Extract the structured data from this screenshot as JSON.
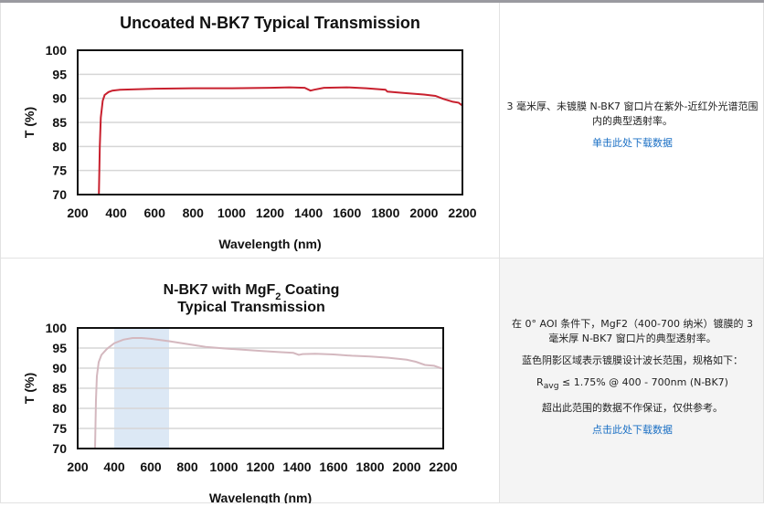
{
  "chart_data": [
    {
      "type": "line",
      "title": "Uncoated N-BK7 Typical Transmission",
      "xlabel": "Wavelength (nm)",
      "ylabel": "T (%)",
      "xlim": [
        200,
        2200
      ],
      "ylim": [
        70,
        100
      ],
      "xticks": [
        200,
        400,
        600,
        800,
        1000,
        1200,
        1400,
        1600,
        1800,
        2000,
        2200
      ],
      "yticks": [
        70,
        75,
        80,
        85,
        90,
        95,
        100
      ],
      "grid": true,
      "color": "#c8202e",
      "x": [
        310,
        315,
        320,
        330,
        340,
        360,
        380,
        420,
        600,
        800,
        1000,
        1200,
        1300,
        1380,
        1410,
        1430,
        1480,
        1600,
        1700,
        1800,
        1810,
        1900,
        2000,
        2060,
        2100,
        2150,
        2180,
        2200
      ],
      "y": [
        70,
        80,
        86,
        89.5,
        90.7,
        91.3,
        91.6,
        91.8,
        92.0,
        92.1,
        92.1,
        92.2,
        92.3,
        92.2,
        91.6,
        91.8,
        92.2,
        92.3,
        92.1,
        91.8,
        91.4,
        91.1,
        90.8,
        90.5,
        89.9,
        89.3,
        89.1,
        88.5
      ]
    },
    {
      "type": "line",
      "title_parts": [
        "N-BK7 with MgF",
        "2",
        " Coating"
      ],
      "title_line2": "Typical Transmission",
      "xlabel": "Wavelength (nm)",
      "ylabel": "T (%)",
      "xlim": [
        200,
        2200
      ],
      "ylim": [
        70,
        100
      ],
      "xticks": [
        200,
        400,
        600,
        800,
        1000,
        1200,
        1400,
        1600,
        1800,
        2000,
        2200
      ],
      "yticks": [
        70,
        75,
        80,
        85,
        90,
        95,
        100
      ],
      "grid": true,
      "color": "#d4b8bf",
      "shaded_range": [
        400,
        700
      ],
      "shade_color": "#dce8f5",
      "x": [
        295,
        300,
        305,
        315,
        330,
        360,
        400,
        450,
        500,
        550,
        600,
        700,
        800,
        900,
        1000,
        1100,
        1200,
        1300,
        1380,
        1410,
        1430,
        1500,
        1600,
        1700,
        1800,
        1900,
        2000,
        2050,
        2100,
        2150,
        2200
      ],
      "y": [
        70,
        82,
        88,
        91.5,
        93.3,
        94.8,
        96.2,
        97.1,
        97.5,
        97.5,
        97.3,
        96.7,
        96.0,
        95.3,
        94.9,
        94.6,
        94.3,
        94.0,
        93.8,
        93.3,
        93.5,
        93.6,
        93.4,
        93.1,
        92.9,
        92.6,
        92.1,
        91.6,
        90.8,
        90.6,
        89.8
      ]
    }
  ],
  "desc1": {
    "text": "3 毫米厚、未镀膜 N-BK7 窗口片在紫外-近红外光谱范围内的典型透射率。",
    "link": "单击此处下载数据"
  },
  "desc2": {
    "line1": "在 0° AOI 条件下，MgF2（400-700 纳米）镀膜的 3 毫米厚 N-BK7 窗口片的典型透射率。",
    "line2": "蓝色阴影区域表示镀膜设计波长范围，规格如下：",
    "spec_r": "R",
    "spec_sub": "avg",
    "spec_rest": " ≤ 1.75% @ 400 - 700nm (N-BK7)",
    "line3": "超出此范围的数据不作保证，仅供参考。",
    "link": "点击此处下载数据"
  }
}
